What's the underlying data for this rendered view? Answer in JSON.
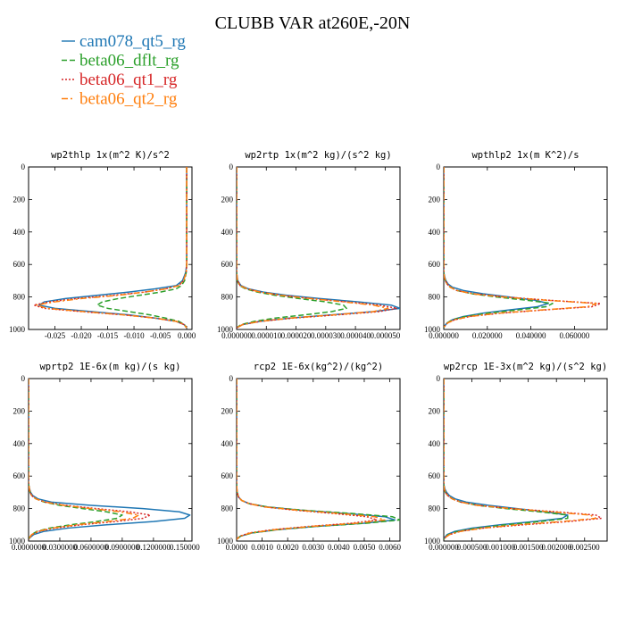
{
  "title": "CLUBB VAR at260E,-20N",
  "legend": [
    {
      "name": "cam078_qt5_rg",
      "color": "#1f77b4",
      "dash": "solid"
    },
    {
      "name": "beta06_dflt_rg",
      "color": "#2ca02c",
      "dash": "dash"
    },
    {
      "name": "beta06_qt1_rg",
      "color": "#d62728",
      "dash": "dot"
    },
    {
      "name": "beta06_qt2_rg",
      "color": "#ff7f0e",
      "dash": "dashdot"
    }
  ],
  "chart_data": [
    {
      "type": "line",
      "title": "wp2thlp  1x(m^2 K)/s^2",
      "xlim": [
        -0.03,
        0.001
      ],
      "ylim": [
        1000,
        0
      ],
      "xticks": [
        "-0.025",
        "-0.020",
        "-0.015",
        "-0.010",
        "-0.005",
        "0.000"
      ],
      "xtick_values": [
        -0.025,
        -0.02,
        -0.015,
        -0.01,
        -0.005,
        0.0
      ],
      "yticks": [
        0,
        200,
        400,
        600,
        800,
        1000
      ],
      "y": [
        0,
        100,
        200,
        300,
        400,
        500,
        600,
        650,
        700,
        730,
        750,
        770,
        790,
        810,
        830,
        850,
        870,
        890,
        910,
        930,
        950,
        970,
        990
      ],
      "series": [
        {
          "name": "cam078_qt5_rg",
          "values": [
            0,
            0,
            0,
            0,
            0,
            0,
            0,
            -0.0002,
            -0.0008,
            -0.002,
            -0.006,
            -0.011,
            -0.017,
            -0.023,
            -0.027,
            -0.028,
            -0.025,
            -0.018,
            -0.011,
            -0.006,
            -0.002,
            -0.0005,
            0
          ]
        },
        {
          "name": "beta06_dflt_rg",
          "values": [
            0,
            0,
            0,
            0,
            0,
            0,
            0,
            -0.0001,
            -0.0004,
            -0.001,
            -0.002,
            -0.005,
            -0.009,
            -0.013,
            -0.016,
            -0.017,
            -0.015,
            -0.011,
            -0.007,
            -0.004,
            -0.0015,
            -0.0004,
            0
          ]
        },
        {
          "name": "beta06_qt1_rg",
          "values": [
            0,
            0,
            0,
            0,
            0,
            0,
            0,
            -0.0001,
            -0.0006,
            -0.0015,
            -0.004,
            -0.008,
            -0.014,
            -0.021,
            -0.026,
            -0.029,
            -0.027,
            -0.02,
            -0.012,
            -0.006,
            -0.002,
            -0.0005,
            0
          ]
        },
        {
          "name": "beta06_qt2_rg",
          "values": [
            0,
            0,
            0,
            0,
            0,
            0,
            0,
            -0.0001,
            -0.0006,
            -0.0015,
            -0.004,
            -0.008,
            -0.013,
            -0.02,
            -0.025,
            -0.0285,
            -0.0265,
            -0.0195,
            -0.012,
            -0.006,
            -0.002,
            -0.0005,
            0
          ]
        }
      ]
    },
    {
      "type": "line",
      "title": "wp2rtp  1x(m^2 kg)/(s^2 kg)",
      "xlim": [
        0,
        5.5e-05
      ],
      "ylim": [
        1000,
        0
      ],
      "xticks": [
        "0.000000",
        "0.000010",
        "0.000020",
        "0.000030",
        "0.000040",
        "0.000050"
      ],
      "xtick_values": [
        0,
        1e-05,
        2e-05,
        3e-05,
        4e-05,
        5e-05
      ],
      "yticks": [
        0,
        200,
        400,
        600,
        800,
        1000
      ],
      "y": [
        0,
        100,
        200,
        300,
        400,
        500,
        600,
        650,
        700,
        730,
        750,
        770,
        790,
        810,
        830,
        850,
        870,
        890,
        910,
        930,
        950,
        970,
        990
      ],
      "series": [
        {
          "name": "cam078_qt5_rg",
          "values": [
            0,
            0,
            0,
            0,
            0,
            0,
            0,
            0,
            4e-07,
            1.5e-06,
            4e-06,
            9e-06,
            1.7e-05,
            2.8e-05,
            4.1e-05,
            5.2e-05,
            5.5e-05,
            4.6e-05,
            3.2e-05,
            1.8e-05,
            8e-06,
            2e-06,
            0
          ]
        },
        {
          "name": "beta06_dflt_rg",
          "values": [
            0,
            0,
            0,
            0,
            0,
            0,
            0,
            0,
            2e-07,
            1e-06,
            3e-06,
            7e-06,
            1.3e-05,
            2.1e-05,
            3e-05,
            3.6e-05,
            3.7e-05,
            3.2e-05,
            2.3e-05,
            1.3e-05,
            6e-06,
            1.5e-06,
            0
          ]
        },
        {
          "name": "beta06_qt1_rg",
          "values": [
            0,
            0,
            0,
            0,
            0,
            0,
            0,
            0,
            3e-07,
            1.2e-06,
            3.5e-06,
            8e-06,
            1.5e-05,
            2.5e-05,
            3.7e-05,
            4.8e-05,
            5.4e-05,
            4.8e-05,
            3.4e-05,
            1.9e-05,
            8e-06,
            2e-06,
            0
          ]
        },
        {
          "name": "beta06_qt2_rg",
          "values": [
            0,
            0,
            0,
            0,
            0,
            0,
            0,
            0,
            3e-07,
            1.2e-06,
            3.5e-06,
            8e-06,
            1.5e-05,
            2.5e-05,
            3.6e-05,
            4.6e-05,
            5.1e-05,
            4.6e-05,
            3.3e-05,
            1.8e-05,
            8e-06,
            2e-06,
            0
          ]
        }
      ]
    },
    {
      "type": "line",
      "title": "wpthlp2  1x(m K^2)/s",
      "xlim": [
        0,
        0.075
      ],
      "ylim": [
        1000,
        0
      ],
      "xticks": [
        "0.000000",
        "0.020000",
        "0.040000",
        "0.060000"
      ],
      "xtick_values": [
        0,
        0.02,
        0.04,
        0.06
      ],
      "yticks": [
        0,
        200,
        400,
        600,
        800,
        1000
      ],
      "y": [
        0,
        100,
        200,
        300,
        400,
        500,
        600,
        650,
        680,
        700,
        720,
        740,
        760,
        780,
        800,
        820,
        840,
        860,
        880,
        900,
        920,
        940,
        960,
        980,
        990
      ],
      "series": [
        {
          "name": "cam078_qt5_rg",
          "values": [
            0,
            0,
            0,
            0,
            0,
            0,
            0,
            0,
            0.0005,
            0.001,
            0.002,
            0.004,
            0.009,
            0.018,
            0.03,
            0.042,
            0.048,
            0.043,
            0.03,
            0.018,
            0.009,
            0.004,
            0.0015,
            0.0003,
            0
          ]
        },
        {
          "name": "beta06_dflt_rg",
          "values": [
            0,
            0,
            0,
            0,
            0,
            0,
            0,
            0,
            0.0003,
            0.0008,
            0.0015,
            0.003,
            0.006,
            0.013,
            0.024,
            0.038,
            0.05,
            0.047,
            0.034,
            0.02,
            0.01,
            0.004,
            0.0015,
            0.0003,
            0
          ]
        },
        {
          "name": "beta06_qt1_rg",
          "values": [
            0,
            0,
            0,
            0,
            0,
            0,
            0,
            0,
            0.0003,
            0.0008,
            0.0015,
            0.003,
            0.006,
            0.014,
            0.028,
            0.048,
            0.072,
            0.068,
            0.046,
            0.026,
            0.012,
            0.005,
            0.0018,
            0.0004,
            0
          ]
        },
        {
          "name": "beta06_qt2_rg",
          "values": [
            0,
            0,
            0,
            0,
            0,
            0,
            0,
            0,
            0.0003,
            0.0008,
            0.0015,
            0.003,
            0.006,
            0.013,
            0.027,
            0.047,
            0.07,
            0.066,
            0.045,
            0.025,
            0.012,
            0.005,
            0.0018,
            0.0004,
            0
          ]
        }
      ]
    },
    {
      "type": "line",
      "title": "wprtp2  1E-6x(m kg)/(s kg)",
      "xlim": [
        0,
        0.157
      ],
      "ylim": [
        1000,
        0
      ],
      "xticks": [
        "0.0000000",
        "0.0300000",
        "0.0600000",
        "0.0900000",
        "0.1200000",
        "0.150000"
      ],
      "xtick_values": [
        0,
        0.03,
        0.06,
        0.09,
        0.12,
        0.15
      ],
      "yticks": [
        0,
        200,
        400,
        600,
        800,
        1000
      ],
      "y": [
        0,
        100,
        200,
        300,
        400,
        500,
        600,
        650,
        680,
        700,
        720,
        740,
        760,
        780,
        800,
        820,
        840,
        860,
        880,
        900,
        920,
        940,
        960,
        980,
        990
      ],
      "series": [
        {
          "name": "cam078_qt5_rg",
          "values": [
            0,
            0,
            0,
            0,
            0,
            0,
            0,
            0,
            0.001,
            0.002,
            0.004,
            0.009,
            0.022,
            0.06,
            0.11,
            0.145,
            0.155,
            0.15,
            0.12,
            0.075,
            0.038,
            0.015,
            0.005,
            0.001,
            0
          ]
        },
        {
          "name": "beta06_dflt_rg",
          "values": [
            0,
            0,
            0,
            0,
            0,
            0,
            0,
            0,
            0.0008,
            0.0015,
            0.003,
            0.007,
            0.015,
            0.03,
            0.052,
            0.075,
            0.09,
            0.085,
            0.065,
            0.04,
            0.02,
            0.008,
            0.003,
            0.0008,
            0
          ]
        },
        {
          "name": "beta06_qt1_rg",
          "values": [
            0,
            0,
            0,
            0,
            0,
            0,
            0,
            0,
            0.0008,
            0.0015,
            0.003,
            0.007,
            0.016,
            0.035,
            0.065,
            0.097,
            0.117,
            0.11,
            0.083,
            0.05,
            0.025,
            0.01,
            0.0035,
            0.001,
            0
          ]
        },
        {
          "name": "beta06_qt2_rg",
          "values": [
            0,
            0,
            0,
            0,
            0,
            0,
            0,
            0,
            0.0008,
            0.0015,
            0.003,
            0.007,
            0.016,
            0.034,
            0.06,
            0.088,
            0.106,
            0.1,
            0.076,
            0.046,
            0.023,
            0.009,
            0.003,
            0.0008,
            0
          ]
        }
      ]
    },
    {
      "type": "line",
      "title": "rcp2  1E-6x(kg^2)/(kg^2)",
      "xlim": [
        0,
        0.0064
      ],
      "ylim": [
        1000,
        0
      ],
      "xticks": [
        "0.0000",
        "0.0010",
        "0.0020",
        "0.0030",
        "0.0040",
        "0.0050",
        "0.0060"
      ],
      "xtick_values": [
        0,
        0.001,
        0.002,
        0.003,
        0.004,
        0.005,
        0.006
      ],
      "yticks": [
        0,
        200,
        400,
        600,
        800,
        1000
      ],
      "y": [
        0,
        100,
        200,
        300,
        400,
        500,
        600,
        650,
        700,
        730,
        750,
        770,
        790,
        810,
        830,
        850,
        870,
        890,
        910,
        930,
        950,
        970,
        990
      ],
      "series": [
        {
          "name": "cam078_qt5_rg",
          "values": [
            0,
            0,
            0,
            0,
            0,
            0,
            0,
            0,
            2e-05,
            8e-05,
            0.0002,
            0.0005,
            0.0012,
            0.0025,
            0.0043,
            0.0058,
            0.0062,
            0.005,
            0.0031,
            0.0016,
            0.0006,
            0.00015,
            0
          ]
        },
        {
          "name": "beta06_dflt_rg",
          "values": [
            0,
            0,
            0,
            0,
            0,
            0,
            0,
            0,
            2e-05,
            8e-05,
            0.0002,
            0.0005,
            0.0012,
            0.0026,
            0.0045,
            0.0061,
            0.0064,
            0.0051,
            0.0031,
            0.0016,
            0.0006,
            0.00015,
            0
          ]
        },
        {
          "name": "beta06_qt1_rg",
          "values": [
            0,
            0,
            0,
            0,
            0,
            0,
            0,
            0,
            2e-05,
            8e-05,
            0.0002,
            0.0005,
            0.0011,
            0.0023,
            0.0038,
            0.0051,
            0.0055,
            0.0045,
            0.0028,
            0.0014,
            0.0005,
            0.00012,
            0
          ]
        },
        {
          "name": "beta06_qt2_rg",
          "values": [
            0,
            0,
            0,
            0,
            0,
            0,
            0,
            0,
            2e-05,
            8e-05,
            0.0002,
            0.0005,
            0.0011,
            0.0024,
            0.004,
            0.0054,
            0.0058,
            0.0047,
            0.0029,
            0.0015,
            0.00055,
            0.00013,
            0
          ]
        }
      ]
    },
    {
      "type": "line",
      "title": "wp2rcp  1E-3x(m^2 kg)/(s^2 kg)",
      "xlim": [
        0,
        0.0029
      ],
      "ylim": [
        1000,
        0
      ],
      "xticks": [
        "0.000000",
        "0.000500",
        "0.001000",
        "0.001500",
        "0.002000",
        "0.002500"
      ],
      "xtick_values": [
        0,
        0.0005,
        0.001,
        0.0015,
        0.002,
        0.0025
      ],
      "yticks": [
        0,
        200,
        400,
        600,
        800,
        1000
      ],
      "y": [
        0,
        100,
        200,
        300,
        400,
        500,
        600,
        650,
        680,
        700,
        720,
        740,
        760,
        780,
        800,
        820,
        840,
        860,
        880,
        900,
        920,
        940,
        960,
        980,
        990
      ],
      "series": [
        {
          "name": "cam078_qt5_rg",
          "values": [
            0,
            0,
            0,
            0,
            0,
            0,
            0,
            0,
            2e-05,
            5e-05,
            0.0001,
            0.0002,
            0.0004,
            0.0008,
            0.0013,
            0.0018,
            0.0022,
            0.0021,
            0.0016,
            0.001,
            0.0005,
            0.0002,
            6e-05,
            1e-05,
            0
          ]
        },
        {
          "name": "beta06_dflt_rg",
          "values": [
            0,
            0,
            0,
            0,
            0,
            0,
            0,
            0,
            1e-05,
            3e-05,
            7e-05,
            0.00015,
            0.0003,
            0.0006,
            0.0011,
            0.0017,
            0.0022,
            0.0022,
            0.0017,
            0.0011,
            0.0006,
            0.00025,
            8e-05,
            2e-05,
            0
          ]
        },
        {
          "name": "beta06_qt1_rg",
          "values": [
            0,
            0,
            0,
            0,
            0,
            0,
            0,
            0,
            1e-05,
            3e-05,
            7e-05,
            0.00015,
            0.0003,
            0.0006,
            0.0012,
            0.002,
            0.0027,
            0.0028,
            0.0022,
            0.0014,
            0.0007,
            0.0003,
            0.0001,
            2e-05,
            0
          ]
        },
        {
          "name": "beta06_qt2_rg",
          "values": [
            0,
            0,
            0,
            0,
            0,
            0,
            0,
            0,
            1e-05,
            3e-05,
            7e-05,
            0.00015,
            0.0003,
            0.0006,
            0.0012,
            0.0019,
            0.0026,
            0.0027,
            0.0021,
            0.0013,
            0.0007,
            0.0003,
            0.0001,
            2e-05,
            0
          ]
        }
      ]
    }
  ]
}
